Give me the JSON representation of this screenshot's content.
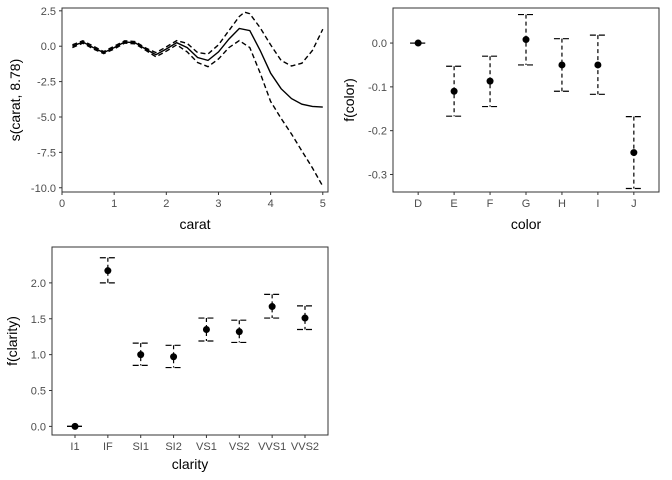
{
  "chart_data": [
    {
      "type": "line",
      "xlabel": "carat",
      "ylabel": "s(carat, 8.78)",
      "xlim": [
        0,
        5.1
      ],
      "ylim": [
        -10.3,
        2.7
      ],
      "x_ticks": [
        0,
        1,
        2,
        3,
        4,
        5
      ],
      "x_tick_labels": [
        "0",
        "1",
        "2",
        "3",
        "4",
        "5"
      ],
      "y_ticks": [
        2.5,
        0,
        -2.5,
        -5,
        -7.5,
        -10
      ],
      "y_tick_labels": [
        "2.5",
        "0.0",
        "-2.5",
        "-5.0",
        "-7.5",
        "-10.0"
      ],
      "grid": false,
      "series": [
        {
          "role": "estimate",
          "style": "solid",
          "points": [
            [
              0.2,
              0.0
            ],
            [
              0.4,
              0.3
            ],
            [
              0.6,
              -0.1
            ],
            [
              0.8,
              -0.45
            ],
            [
              1.0,
              -0.1
            ],
            [
              1.2,
              0.3
            ],
            [
              1.4,
              0.25
            ],
            [
              1.6,
              -0.2
            ],
            [
              1.8,
              -0.6
            ],
            [
              2.0,
              -0.2
            ],
            [
              2.2,
              0.25
            ],
            [
              2.4,
              -0.1
            ],
            [
              2.6,
              -0.8
            ],
            [
              2.8,
              -1.0
            ],
            [
              3.0,
              -0.4
            ],
            [
              3.2,
              0.5
            ],
            [
              3.4,
              1.25
            ],
            [
              3.6,
              1.1
            ],
            [
              3.8,
              -0.3
            ],
            [
              4.0,
              -1.9
            ],
            [
              4.2,
              -3.0
            ],
            [
              4.4,
              -3.7
            ],
            [
              4.6,
              -4.1
            ],
            [
              4.8,
              -4.25
            ],
            [
              5.0,
              -4.3
            ]
          ]
        },
        {
          "role": "upper-band",
          "style": "dashed",
          "points": [
            [
              0.2,
              0.1
            ],
            [
              0.4,
              0.38
            ],
            [
              0.6,
              0.0
            ],
            [
              0.8,
              -0.38
            ],
            [
              1.0,
              0.0
            ],
            [
              1.2,
              0.38
            ],
            [
              1.4,
              0.33
            ],
            [
              1.6,
              -0.12
            ],
            [
              1.8,
              -0.45
            ],
            [
              2.0,
              -0.05
            ],
            [
              2.2,
              0.4
            ],
            [
              2.4,
              0.2
            ],
            [
              2.6,
              -0.45
            ],
            [
              2.8,
              -0.55
            ],
            [
              3.0,
              0.1
            ],
            [
              3.2,
              1.1
            ],
            [
              3.4,
              2.1
            ],
            [
              3.5,
              2.4
            ],
            [
              3.6,
              2.3
            ],
            [
              3.8,
              1.3
            ],
            [
              4.0,
              0.1
            ],
            [
              4.2,
              -1.0
            ],
            [
              4.4,
              -1.4
            ],
            [
              4.6,
              -1.2
            ],
            [
              4.8,
              -0.3
            ],
            [
              5.0,
              1.2
            ]
          ]
        },
        {
          "role": "lower-band",
          "style": "dashed",
          "points": [
            [
              0.2,
              -0.1
            ],
            [
              0.4,
              0.22
            ],
            [
              0.6,
              -0.2
            ],
            [
              0.8,
              -0.52
            ],
            [
              1.0,
              -0.2
            ],
            [
              1.2,
              0.22
            ],
            [
              1.4,
              0.17
            ],
            [
              1.6,
              -0.28
            ],
            [
              1.8,
              -0.75
            ],
            [
              2.0,
              -0.35
            ],
            [
              2.2,
              0.1
            ],
            [
              2.4,
              -0.4
            ],
            [
              2.6,
              -1.15
            ],
            [
              2.8,
              -1.45
            ],
            [
              3.0,
              -0.9
            ],
            [
              3.2,
              -0.1
            ],
            [
              3.4,
              0.4
            ],
            [
              3.6,
              -0.1
            ],
            [
              3.8,
              -1.9
            ],
            [
              4.0,
              -3.9
            ],
            [
              4.2,
              -5.1
            ],
            [
              4.4,
              -6.2
            ],
            [
              4.6,
              -7.4
            ],
            [
              4.8,
              -8.6
            ],
            [
              5.0,
              -9.9
            ]
          ]
        }
      ]
    },
    {
      "type": "scatter",
      "xlabel": "color",
      "ylabel": "f(color)",
      "categories": [
        "D",
        "E",
        "F",
        "G",
        "H",
        "I",
        "J"
      ],
      "values": [
        0.0,
        -0.11,
        -0.087,
        0.008,
        -0.05,
        -0.05,
        -0.25
      ],
      "lower": [
        0.0,
        -0.167,
        -0.145,
        -0.05,
        -0.11,
        -0.117,
        -0.332
      ],
      "upper": [
        0.0,
        -0.053,
        -0.03,
        0.065,
        0.01,
        0.018,
        -0.168
      ],
      "ylim": [
        -0.34,
        0.08
      ],
      "y_ticks": [
        0.0,
        -0.1,
        -0.2,
        -0.3
      ],
      "y_tick_labels": [
        "0.0",
        "-0.1",
        "-0.2",
        "-0.3"
      ],
      "grid": false
    },
    {
      "type": "scatter",
      "xlabel": "clarity",
      "ylabel": "f(clarity)",
      "categories": [
        "I1",
        "IF",
        "SI1",
        "SI2",
        "VS1",
        "VS2",
        "VVS1",
        "VVS2"
      ],
      "values": [
        0.0,
        2.17,
        1.0,
        0.97,
        1.35,
        1.32,
        1.67,
        1.51
      ],
      "lower": [
        0.0,
        2.0,
        0.85,
        0.82,
        1.19,
        1.17,
        1.51,
        1.35
      ],
      "upper": [
        0.0,
        2.35,
        1.16,
        1.13,
        1.51,
        1.48,
        1.84,
        1.68
      ],
      "ylim": [
        -0.12,
        2.5
      ],
      "y_ticks": [
        0.0,
        0.5,
        1.0,
        1.5,
        2.0
      ],
      "y_tick_labels": [
        "0.0",
        "0.5",
        "1.0",
        "1.5",
        "2.0"
      ],
      "grid": false
    }
  ]
}
